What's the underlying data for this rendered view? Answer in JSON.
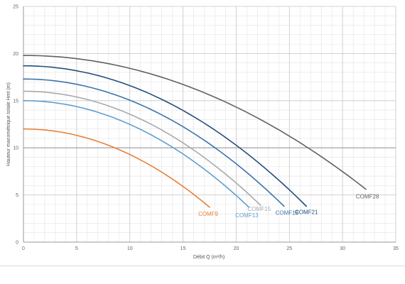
{
  "chart_data": {
    "type": "line",
    "xlabel": "Débit Q (m³/h)",
    "ylabel": "Hauteur manométrique totale Hmt (m)",
    "xlim": [
      0,
      35
    ],
    "ylim": [
      0,
      25
    ],
    "x_major_ticks": [
      0,
      5,
      10,
      15,
      20,
      25,
      30,
      35
    ],
    "y_major_ticks": [
      0,
      5,
      10,
      15,
      20,
      25
    ],
    "grid": true,
    "legend": "none (series labelled at curve ends)",
    "series": [
      {
        "name": "COMF9",
        "color": "#e8803a",
        "h0": 12.0,
        "qmax": 17.5,
        "hend": 3.7
      },
      {
        "name": "COMF13",
        "color": "#5f9fd0",
        "h0": 15.0,
        "qmax": 21.2,
        "hend": 3.7
      },
      {
        "name": "COMF15",
        "color": "#a9a9a9",
        "h0": 16.0,
        "qmax": 22.3,
        "hend": 3.9
      },
      {
        "name": "COMF18",
        "color": "#3b74ad",
        "h0": 17.3,
        "qmax": 24.5,
        "hend": 3.8
      },
      {
        "name": "COMF21",
        "color": "#254f7c",
        "h0": 18.7,
        "qmax": 26.6,
        "hend": 3.8
      },
      {
        "name": "COMF28",
        "color": "#626262",
        "h0": 19.8,
        "qmax": 32.2,
        "hend": 5.6
      }
    ]
  }
}
